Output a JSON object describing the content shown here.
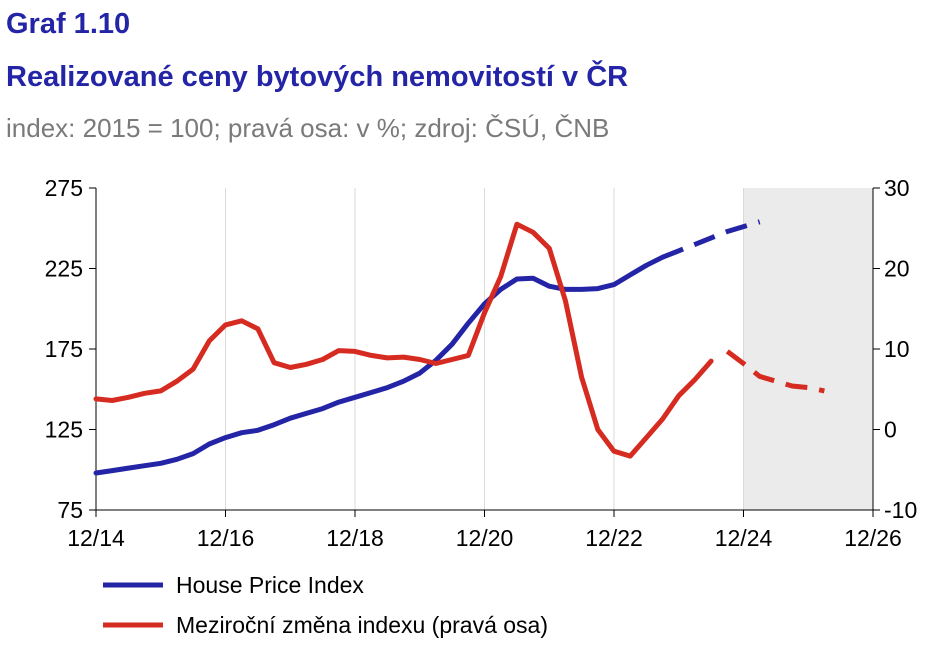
{
  "header": {
    "graph_number": "Graf 1.10",
    "title": "Realizované ceny bytových nemovitostí v ČR",
    "subtitle": "index: 2015 = 100; pravá osa: v %; zdroj: ČSÚ, ČNB"
  },
  "colors": {
    "index": "#2424a6",
    "yoy": "#d62b20",
    "forecast_band": "#ebebeb",
    "grid": "#d9d9d9",
    "title": "#2424a6",
    "subtitle": "#7a7a7a"
  },
  "chart_data": {
    "type": "line",
    "x_tick_labels": [
      "12/14",
      "12/16",
      "12/18",
      "12/20",
      "12/22",
      "12/24",
      "12/26"
    ],
    "y_left": {
      "ticks": [
        "275",
        "225",
        "175",
        "125",
        "75"
      ],
      "range": [
        75,
        275
      ]
    },
    "y_right": {
      "ticks": [
        "30",
        "20",
        "10",
        "0",
        "-10"
      ],
      "range": [
        -10,
        30
      ]
    },
    "grid": "vertical",
    "forecast_band": {
      "from": "12/24",
      "to": "12/26"
    },
    "legend_position": "bottom-left",
    "series": [
      {
        "name": "House Price Index",
        "axis": "left",
        "color": "#2424a6",
        "actual": [
          [
            "12/14",
            98
          ],
          [
            "3/15",
            99.5
          ],
          [
            "6/15",
            101
          ],
          [
            "9/15",
            102.5
          ],
          [
            "12/15",
            104
          ],
          [
            "3/16",
            106.5
          ],
          [
            "6/16",
            110
          ],
          [
            "9/16",
            116
          ],
          [
            "12/16",
            120
          ],
          [
            "3/17",
            123
          ],
          [
            "6/17",
            124.5
          ],
          [
            "9/17",
            128
          ],
          [
            "12/17",
            132
          ],
          [
            "3/18",
            135
          ],
          [
            "6/18",
            138
          ],
          [
            "9/18",
            142
          ],
          [
            "12/18",
            145
          ],
          [
            "3/19",
            148
          ],
          [
            "6/19",
            151
          ],
          [
            "9/19",
            155
          ],
          [
            "12/19",
            160
          ],
          [
            "3/20",
            168
          ],
          [
            "6/20",
            178
          ],
          [
            "9/20",
            191
          ],
          [
            "12/20",
            203
          ],
          [
            "3/21",
            212
          ],
          [
            "6/21",
            218.5
          ],
          [
            "9/21",
            219
          ],
          [
            "12/21",
            214
          ],
          [
            "3/22",
            212
          ],
          [
            "6/22",
            212
          ],
          [
            "9/22",
            212.5
          ],
          [
            "12/22",
            215
          ],
          [
            "3/23",
            221
          ],
          [
            "6/23",
            227
          ],
          [
            "9/23",
            232
          ]
        ],
        "forecast": [
          [
            "9/23",
            232
          ],
          [
            "12/23",
            236
          ],
          [
            "3/24",
            240
          ],
          [
            "6/24",
            244
          ],
          [
            "9/24",
            248
          ],
          [
            "12/24",
            251
          ],
          [
            "3/25",
            254
          ]
        ]
      },
      {
        "name": "Meziroční změna indexu (pravá osa)",
        "axis": "right",
        "color": "#d62b20",
        "actual": [
          [
            "12/14",
            3.8
          ],
          [
            "3/15",
            3.6
          ],
          [
            "6/15",
            4
          ],
          [
            "9/15",
            4.5
          ],
          [
            "12/15",
            4.8
          ],
          [
            "3/16",
            6
          ],
          [
            "6/16",
            7.5
          ],
          [
            "9/16",
            11
          ],
          [
            "12/16",
            13
          ],
          [
            "3/17",
            13.5
          ],
          [
            "6/17",
            12.5
          ],
          [
            "9/17",
            8.3
          ],
          [
            "12/17",
            7.7
          ],
          [
            "3/18",
            8.1
          ],
          [
            "6/18",
            8.7
          ],
          [
            "9/18",
            9.8
          ],
          [
            "12/18",
            9.7
          ],
          [
            "3/19",
            9.2
          ],
          [
            "6/19",
            8.9
          ],
          [
            "9/19",
            9
          ],
          [
            "12/19",
            8.7
          ],
          [
            "3/20",
            8.2
          ],
          [
            "6/20",
            8.7
          ],
          [
            "9/20",
            9.2
          ],
          [
            "12/20",
            14.5
          ],
          [
            "3/21",
            19
          ],
          [
            "6/21",
            25.5
          ],
          [
            "9/21",
            24.5
          ],
          [
            "12/21",
            22.5
          ],
          [
            "3/22",
            16
          ],
          [
            "6/22",
            6.5
          ],
          [
            "9/22",
            0
          ],
          [
            "12/22",
            -2.7
          ],
          [
            "3/23",
            -3.3
          ],
          [
            "6/23",
            -1
          ],
          [
            "9/23",
            1.3
          ],
          [
            "12/23",
            4.2
          ],
          [
            "3/24",
            6.2
          ],
          [
            "6/24",
            8.5
          ]
        ],
        "forecast": [
          [
            "9/24",
            9.7
          ],
          [
            "12/24",
            8.2
          ],
          [
            "3/25",
            6.6
          ],
          [
            "6/25",
            6
          ],
          [
            "9/25",
            5.4
          ],
          [
            "12/25",
            5.2
          ],
          [
            "3/26",
            4.8
          ]
        ]
      }
    ]
  }
}
